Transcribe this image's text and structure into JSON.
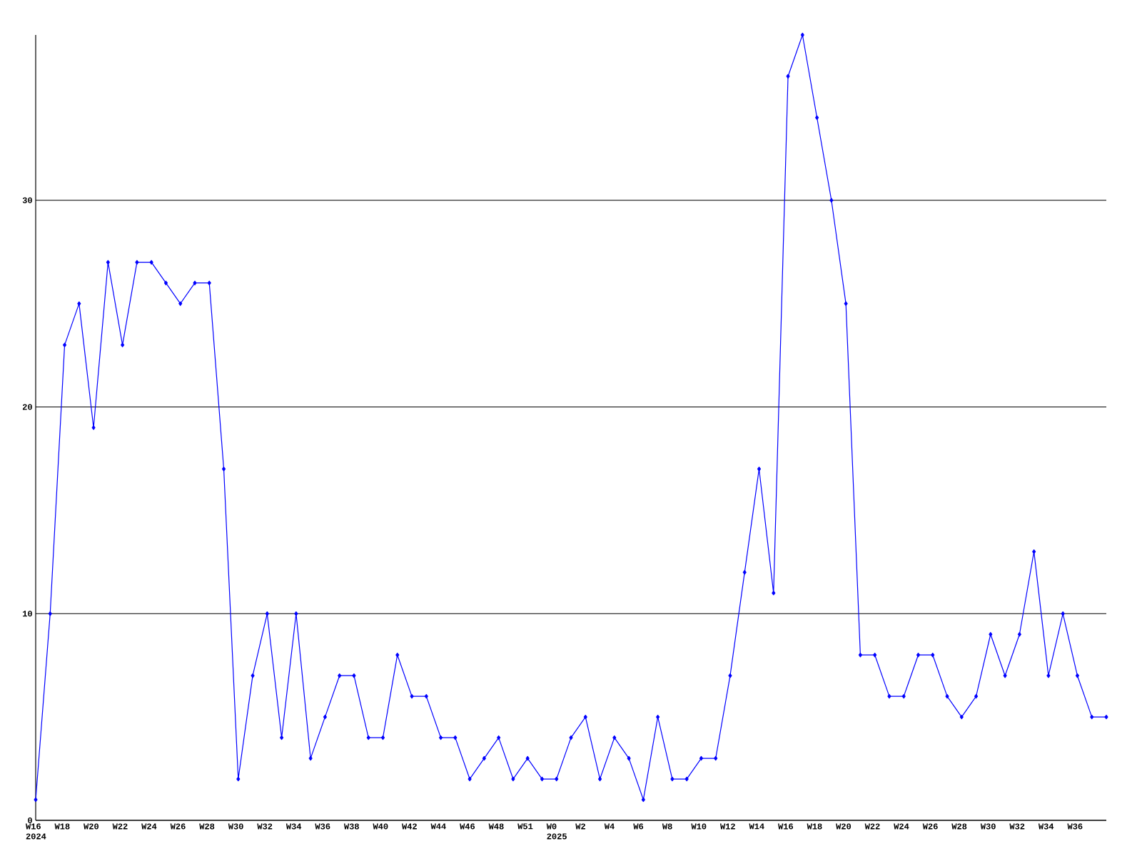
{
  "chart_data": {
    "type": "line",
    "categories": [
      "W16 2024",
      null,
      "W18",
      null,
      "W20",
      null,
      "W22",
      null,
      "W24",
      null,
      "W26",
      null,
      "W28",
      null,
      "W30",
      null,
      "W32",
      null,
      "W34",
      null,
      "W36",
      null,
      "W38",
      null,
      "W40",
      null,
      "W42",
      null,
      "W44",
      null,
      "W46",
      null,
      "W48",
      null,
      "W51",
      null,
      "W0 2025",
      null,
      "W2",
      null,
      "W4",
      null,
      "W6",
      null,
      "W8",
      null,
      "W10",
      null,
      "W12",
      null,
      "W14",
      null,
      "W16",
      null,
      "W18",
      null,
      "W20",
      null,
      "W22",
      null,
      "W24",
      null,
      "W26",
      null,
      "W28",
      null,
      "W30",
      null,
      "W32",
      null,
      "W34",
      null,
      "W36",
      null,
      null
    ],
    "series": [
      {
        "color": "#0000ff",
        "values": [
          1,
          10,
          23,
          25,
          19,
          27,
          23,
          27,
          27,
          26,
          25,
          26,
          26,
          17,
          2,
          7,
          10,
          4,
          10,
          3,
          5,
          7,
          7,
          4,
          4,
          8,
          6,
          6,
          4,
          4,
          2,
          3,
          4,
          2,
          3,
          2,
          2,
          4,
          5,
          2,
          4,
          3,
          1,
          5,
          2,
          2,
          3,
          3,
          7,
          12,
          17,
          11,
          36,
          38,
          34,
          30,
          25,
          8,
          8,
          6,
          6,
          8,
          8,
          6,
          5,
          6,
          9,
          7,
          9,
          13,
          7,
          10,
          7,
          5,
          5
        ]
      }
    ],
    "ylim": [
      0,
      38
    ],
    "yticks": [
      0,
      10,
      20,
      30
    ],
    "grid": "y",
    "marker": "diamond",
    "line_style": "solid"
  }
}
